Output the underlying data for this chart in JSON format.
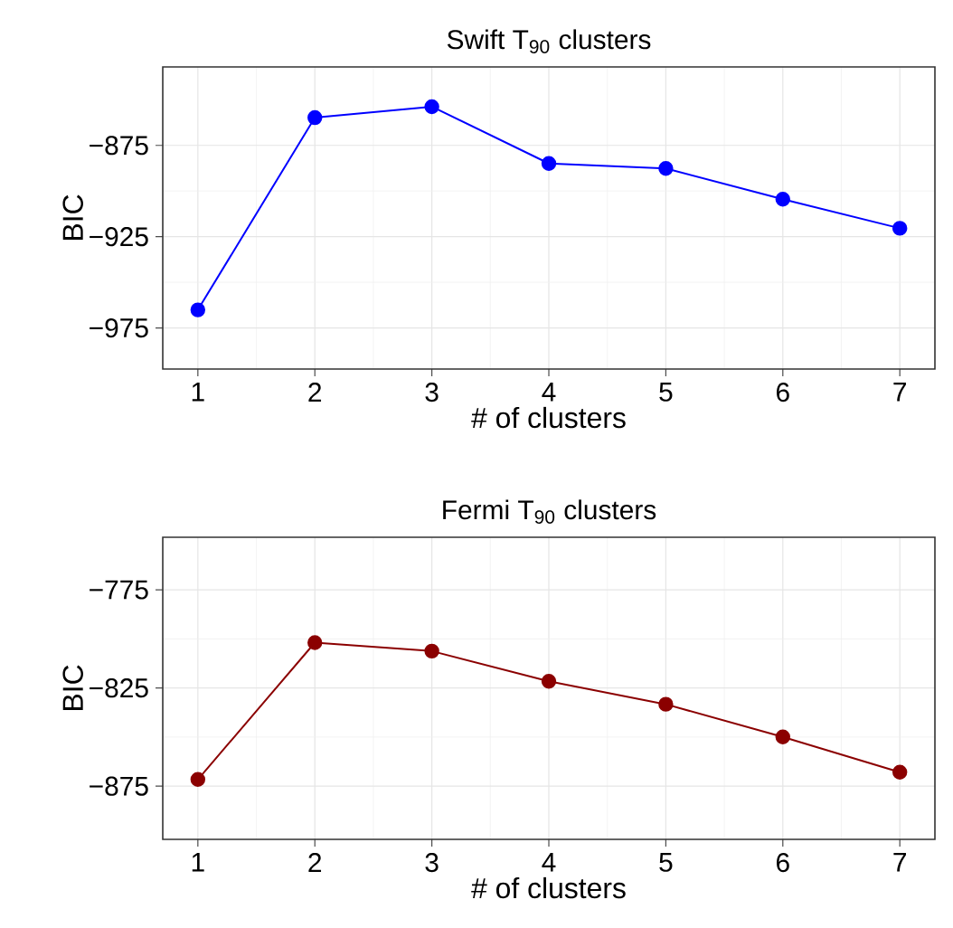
{
  "chart_data": [
    {
      "type": "line",
      "title": "Swift T$_{90}$ clusters",
      "xlabel": "# of clusters",
      "ylabel": "BIC",
      "x": [
        1,
        2,
        3,
        4,
        5,
        6,
        7
      ],
      "series": [
        {
          "color": "#0000ff",
          "values": [
            -965.1,
            -859.8,
            -853.8,
            -884.9,
            -887.6,
            -904.5,
            -920.4
          ]
        }
      ],
      "xlim": [
        0.7,
        7.3
      ],
      "ylim": [
        -997.5,
        -832
      ],
      "xticks": [
        1,
        2,
        3,
        4,
        5,
        6,
        7
      ],
      "yticks": [
        {
          "value": -975,
          "label": "−975"
        },
        {
          "value": -925,
          "label": "−925"
        },
        {
          "value": -875,
          "label": "−875"
        }
      ],
      "grid": true,
      "marker": "circle",
      "line_style": "solid"
    },
    {
      "type": "line",
      "title": "Fermi T$_{90}$ clusters",
      "xlabel": "# of clusters",
      "ylabel": "BIC",
      "x": [
        1,
        2,
        3,
        4,
        5,
        6,
        7
      ],
      "series": [
        {
          "color": "#8b0000",
          "values": [
            -871.6,
            -801.9,
            -806.2,
            -821.6,
            -833.3,
            -849.9,
            -867.9
          ]
        }
      ],
      "xlim": [
        0.7,
        7.3
      ],
      "ylim": [
        -902.1,
        -748.2
      ],
      "xticks": [
        1,
        2,
        3,
        4,
        5,
        6,
        7
      ],
      "yticks": [
        {
          "value": -875,
          "label": "−875"
        },
        {
          "value": -825,
          "label": "−825"
        },
        {
          "value": -775,
          "label": "−775"
        }
      ],
      "grid": true,
      "marker": "circle",
      "line_style": "solid"
    }
  ]
}
